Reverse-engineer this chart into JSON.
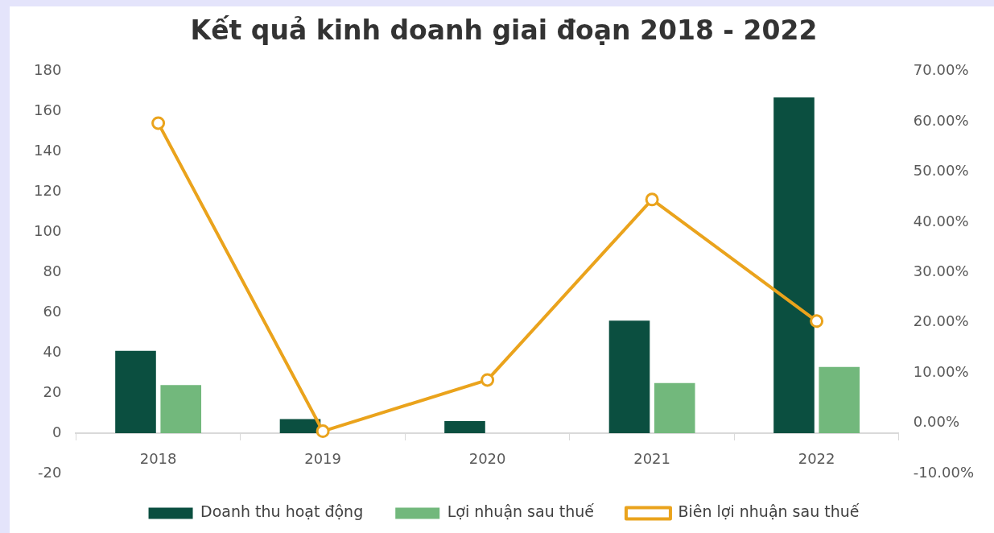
{
  "chart_data": {
    "type": "bar",
    "title": "Kết quả kinh doanh giai đoạn 2018 - 2022",
    "categories": [
      "2018",
      "2019",
      "2020",
      "2021",
      "2022"
    ],
    "series": [
      {
        "name": "Doanh thu hoạt động",
        "color": "#0b4f40",
        "values": [
          41,
          7,
          6,
          56,
          167
        ]
      },
      {
        "name": "Lợi nhuận sau thuế",
        "color": "#72b87c",
        "values": [
          24,
          0,
          0,
          25,
          33
        ]
      },
      {
        "name": "Biên lợi nhuận sau thuế",
        "type": "line",
        "axis": "y2",
        "color": "#eaa31c",
        "marker": "circle",
        "values": [
          59.7,
          -1.6,
          8.6,
          44.5,
          20.3
        ]
      }
    ],
    "ylim": [
      -20,
      180
    ],
    "yticks": [
      -20,
      0,
      20,
      40,
      60,
      80,
      100,
      120,
      140,
      160,
      180
    ],
    "y2lim": [
      -10,
      70
    ],
    "y2ticks": [
      {
        "value": -10,
        "label": "-10.00%"
      },
      {
        "value": 0,
        "label": "0.00%"
      },
      {
        "value": 10,
        "label": "10.00%"
      },
      {
        "value": 20,
        "label": "20.00%"
      },
      {
        "value": 30,
        "label": "30.00%"
      },
      {
        "value": 40,
        "label": "40.00%"
      },
      {
        "value": 50,
        "label": "50.00%"
      },
      {
        "value": 60,
        "label": "60.00%"
      },
      {
        "value": 70,
        "label": "70.00%"
      }
    ],
    "grid": false,
    "legend": "bottom"
  }
}
